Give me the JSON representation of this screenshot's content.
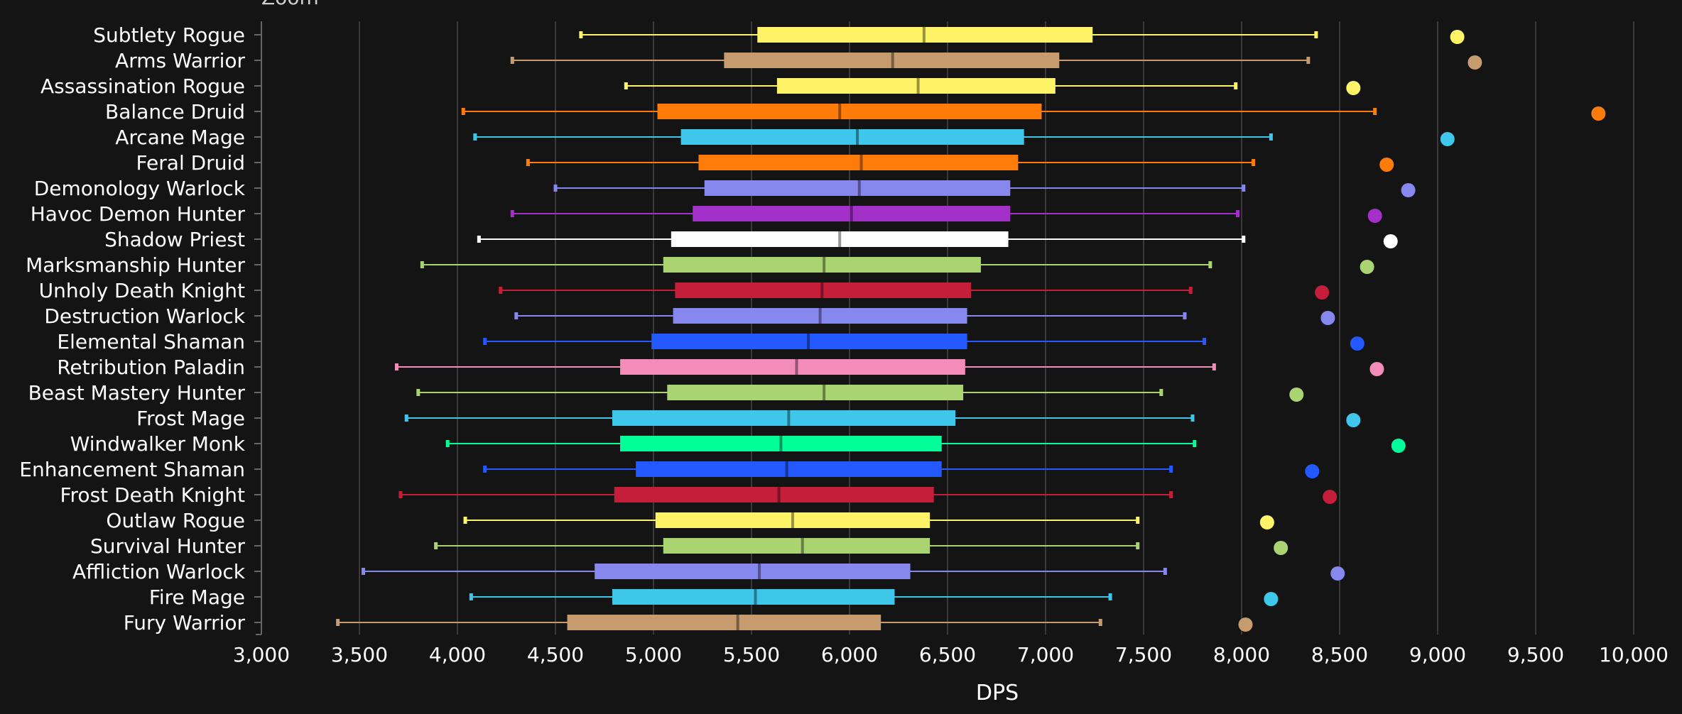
{
  "top_text": "Zoom",
  "chart_data": {
    "type": "boxplot",
    "xlabel": "DPS",
    "xlim": [
      3000,
      10000
    ],
    "xticks": [
      3000,
      3500,
      4000,
      4500,
      5000,
      5500,
      6000,
      6500,
      7000,
      7500,
      8000,
      8500,
      9000,
      9500,
      10000
    ],
    "xtick_labels": [
      "3,000",
      "3,500",
      "4,000",
      "4,500",
      "5,000",
      "5,500",
      "6,000",
      "6,500",
      "7,000",
      "7,500",
      "8,000",
      "8,500",
      "9,000",
      "9,500",
      "10,000"
    ],
    "grid": "vertical",
    "categories": [
      {
        "name": "Subtlety Rogue",
        "color": "#fff468",
        "min": 4630,
        "q1": 5530,
        "median": 6380,
        "q3": 7240,
        "max": 8380,
        "max_point": 9100
      },
      {
        "name": "Arms Warrior",
        "color": "#c69b6d",
        "min": 4280,
        "q1": 5360,
        "median": 6220,
        "q3": 7070,
        "max": 8340,
        "max_point": 9190
      },
      {
        "name": "Assassination Rogue",
        "color": "#fff468",
        "min": 4860,
        "q1": 5630,
        "median": 6350,
        "q3": 7050,
        "max": 7970,
        "max_point": 8570
      },
      {
        "name": "Balance Druid",
        "color": "#ff7c0a",
        "min": 4030,
        "q1": 5020,
        "median": 5950,
        "q3": 6980,
        "max": 8680,
        "max_point": 9820
      },
      {
        "name": "Arcane Mage",
        "color": "#3fc7eb",
        "min": 4090,
        "q1": 5140,
        "median": 6040,
        "q3": 6890,
        "max": 8150,
        "max_point": 9050
      },
      {
        "name": "Feral Druid",
        "color": "#ff7c0a",
        "min": 4360,
        "q1": 5230,
        "median": 6060,
        "q3": 6860,
        "max": 8060,
        "max_point": 8740
      },
      {
        "name": "Demonology Warlock",
        "color": "#8788ee",
        "min": 4500,
        "q1": 5260,
        "median": 6050,
        "q3": 6820,
        "max": 8010,
        "max_point": 8850
      },
      {
        "name": "Havoc Demon Hunter",
        "color": "#a330c9",
        "min": 4280,
        "q1": 5200,
        "median": 6010,
        "q3": 6820,
        "max": 7980,
        "max_point": 8680
      },
      {
        "name": "Shadow Priest",
        "color": "#ffffff",
        "min": 4110,
        "q1": 5090,
        "median": 5950,
        "q3": 6810,
        "max": 8010,
        "max_point": 8760
      },
      {
        "name": "Marksmanship Hunter",
        "color": "#aad372",
        "min": 3820,
        "q1": 5050,
        "median": 5870,
        "q3": 6670,
        "max": 7840,
        "max_point": 8640
      },
      {
        "name": "Unholy Death Knight",
        "color": "#c41e3a",
        "min": 4220,
        "q1": 5110,
        "median": 5860,
        "q3": 6620,
        "max": 7740,
        "max_point": 8410
      },
      {
        "name": "Destruction Warlock",
        "color": "#8788ee",
        "min": 4300,
        "q1": 5100,
        "median": 5850,
        "q3": 6600,
        "max": 7710,
        "max_point": 8440
      },
      {
        "name": "Elemental Shaman",
        "color": "#2359ff",
        "min": 4140,
        "q1": 4990,
        "median": 5790,
        "q3": 6600,
        "max": 7810,
        "max_point": 8590
      },
      {
        "name": "Retribution Paladin",
        "color": "#f48cba",
        "min": 3690,
        "q1": 4830,
        "median": 5730,
        "q3": 6590,
        "max": 7860,
        "max_point": 8690
      },
      {
        "name": "Beast Mastery Hunter",
        "color": "#aad372",
        "min": 3800,
        "q1": 5070,
        "median": 5870,
        "q3": 6580,
        "max": 7590,
        "max_point": 8280
      },
      {
        "name": "Frost Mage",
        "color": "#3fc7eb",
        "min": 3740,
        "q1": 4790,
        "median": 5690,
        "q3": 6540,
        "max": 7750,
        "max_point": 8570
      },
      {
        "name": "Windwalker Monk",
        "color": "#00ff98",
        "min": 3950,
        "q1": 4830,
        "median": 5650,
        "q3": 6470,
        "max": 7760,
        "max_point": 8800
      },
      {
        "name": "Enhancement Shaman",
        "color": "#2359ff",
        "min": 4140,
        "q1": 4910,
        "median": 5680,
        "q3": 6470,
        "max": 7640,
        "max_point": 8360
      },
      {
        "name": "Frost Death Knight",
        "color": "#c41e3a",
        "min": 3710,
        "q1": 4800,
        "median": 5640,
        "q3": 6430,
        "max": 7640,
        "max_point": 8450
      },
      {
        "name": "Outlaw Rogue",
        "color": "#fff468",
        "min": 4040,
        "q1": 5010,
        "median": 5710,
        "q3": 6410,
        "max": 7470,
        "max_point": 8130
      },
      {
        "name": "Survival Hunter",
        "color": "#aad372",
        "min": 3890,
        "q1": 5050,
        "median": 5760,
        "q3": 6410,
        "max": 7470,
        "max_point": 8200
      },
      {
        "name": "Affliction Warlock",
        "color": "#8788ee",
        "min": 3520,
        "q1": 4700,
        "median": 5540,
        "q3": 6310,
        "max": 7610,
        "max_point": 8490
      },
      {
        "name": "Fire Mage",
        "color": "#3fc7eb",
        "min": 4070,
        "q1": 4790,
        "median": 5520,
        "q3": 6230,
        "max": 7330,
        "max_point": 8150
      },
      {
        "name": "Fury Warrior",
        "color": "#c69b6d",
        "min": 3390,
        "q1": 4560,
        "median": 5430,
        "q3": 6160,
        "max": 7280,
        "max_point": 8020
      }
    ]
  }
}
